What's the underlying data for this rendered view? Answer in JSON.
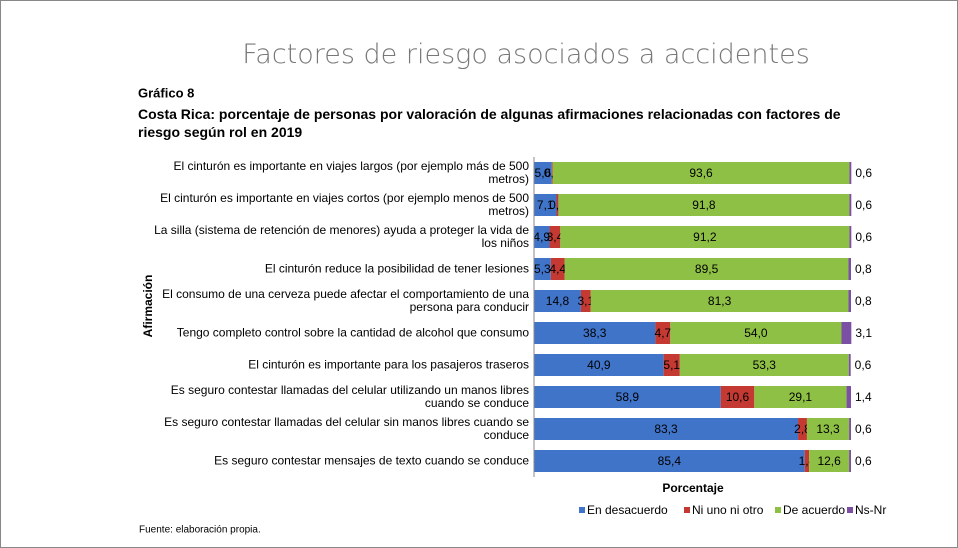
{
  "heading": "Factores de riesgo asociados a accidentes",
  "chart_data": {
    "type": "stacked-barh",
    "label": "Gráfico 8",
    "title": "Costa Rica: porcentaje de personas por valoración de algunas afirmaciones relacionadas con factores de riesgo según rol en 2019",
    "ylabel": "Afirmación",
    "xlabel": "Porcentaje",
    "source": "Fuente: elaboración propia.",
    "xlim": [
      0,
      100
    ],
    "categories": [
      "El cinturón es importante en viajes largos (por ejemplo más de 500 metros)",
      "El cinturón es importante en viajes cortos (por ejemplo menos de 500 metros)",
      "La silla (sistema de retención de menores) ayuda a proteger la vida de los niños",
      "El cinturón reduce la posibilidad de tener lesiones",
      "El consumo de una cerveza puede afectar el comportamiento de una persona para conducir",
      "Tengo completo control sobre la cantidad de alcohol que consumo",
      "El cinturón es importante para los pasajeros traseros",
      "Es seguro contestar llamadas del celular utilizando un manos libres cuando se conduce",
      "Es seguro contestar llamadas del celular sin manos libres cuando se conduce",
      "Es seguro contestar mensajes de texto cuando se conduce"
    ],
    "series": [
      {
        "name": "En desacuerdo",
        "color": "#3f74c9",
        "values": [
          5.6,
          7.1,
          4.9,
          5.3,
          14.8,
          38.3,
          40.9,
          58.9,
          83.3,
          85.4
        ],
        "value_labels": [
          "5,6",
          "7,1",
          "4,9",
          "5,3",
          "14,8",
          "38,3",
          "40,9",
          "58,9",
          "83,3",
          "85,4"
        ]
      },
      {
        "name": "Ni uno ni otro",
        "color": "#c43a32",
        "values": [
          0.3,
          0.6,
          3.4,
          4.4,
          3.1,
          4.7,
          5.1,
          10.6,
          2.8,
          1.4
        ],
        "value_labels": [
          "0,3",
          "0,6",
          "3,4",
          "4,4",
          "3,1",
          "4,7",
          "5,1",
          "10,6",
          "2,8",
          "1,4"
        ]
      },
      {
        "name": "De acuerdo",
        "color": "#8fc046",
        "values": [
          93.6,
          91.8,
          91.2,
          89.5,
          81.3,
          54.0,
          53.3,
          29.1,
          13.3,
          12.6
        ],
        "value_labels": [
          "93,6",
          "91,8",
          "91,2",
          "89,5",
          "81,3",
          "54,0",
          "53,3",
          "29,1",
          "13,3",
          "12,6"
        ]
      },
      {
        "name": "Ns-Nr",
        "color": "#7b4fa3",
        "values": [
          0.6,
          0.6,
          0.6,
          0.8,
          0.8,
          3.1,
          0.6,
          1.4,
          0.6,
          0.6
        ],
        "value_labels": [
          "0,6",
          "0,6",
          "0,6",
          "0,8",
          "0,8",
          "3,1",
          "0,6",
          "1,4",
          "0,6",
          "0,6"
        ]
      }
    ]
  }
}
